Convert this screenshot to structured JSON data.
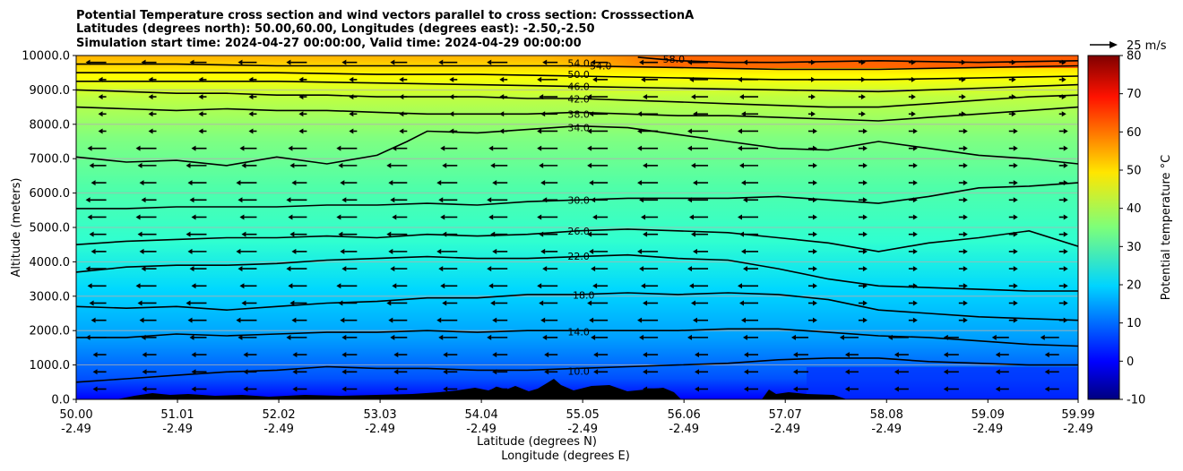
{
  "chart_data": {
    "type": "contour_cross_section",
    "title_lines": [
      "Potential Temperature cross section and wind vectors parallel to cross section: CrosssectionA",
      "Latitudes (degrees north): 50.00,60.00, Longitudes (degrees east): -2.50,-2.50",
      "Simulation start time: 2024-04-27 00:00:00, Valid time: 2024-04-29 00:00:00"
    ],
    "ylabel": "Altitude (meters)",
    "xlabel": "Latitude (degrees N)",
    "xlabel2": "Longitude (degrees E)",
    "xlim": [
      50.0,
      59.99
    ],
    "ylim": [
      0,
      10000
    ],
    "x_ticks": [
      {
        "lat": "50.00",
        "lon": "-2.49",
        "value": 50.0
      },
      {
        "lat": "51.01",
        "lon": "-2.49",
        "value": 51.01
      },
      {
        "lat": "52.02",
        "lon": "-2.49",
        "value": 52.02
      },
      {
        "lat": "53.03",
        "lon": "-2.49",
        "value": 53.03
      },
      {
        "lat": "54.04",
        "lon": "-2.49",
        "value": 54.04
      },
      {
        "lat": "55.05",
        "lon": "-2.49",
        "value": 55.05
      },
      {
        "lat": "56.06",
        "lon": "-2.49",
        "value": 56.06
      },
      {
        "lat": "57.07",
        "lon": "-2.49",
        "value": 57.07
      },
      {
        "lat": "58.08",
        "lon": "-2.49",
        "value": 58.08
      },
      {
        "lat": "59.09",
        "lon": "-2.49",
        "value": 59.09
      },
      {
        "lat": "59.99",
        "lon": "-2.49",
        "value": 59.99
      }
    ],
    "y_ticks": [
      {
        "label": "0.0",
        "value": 0
      },
      {
        "label": "1000.0",
        "value": 1000
      },
      {
        "label": "2000.0",
        "value": 2000
      },
      {
        "label": "3000.0",
        "value": 3000
      },
      {
        "label": "4000.0",
        "value": 4000
      },
      {
        "label": "5000.0",
        "value": 5000
      },
      {
        "label": "6000.0",
        "value": 6000
      },
      {
        "label": "7000.0",
        "value": 7000
      },
      {
        "label": "8000.0",
        "value": 8000
      },
      {
        "label": "9000.0",
        "value": 9000
      },
      {
        "label": "10000.0",
        "value": 10000
      }
    ],
    "grid": "horizontal",
    "colorbar": {
      "label": "Potential temperature $^\\circ$C",
      "min": -10,
      "max": 80,
      "ticks": [
        "-10",
        "0",
        "10",
        "20",
        "30",
        "40",
        "50",
        "60",
        "70",
        "80"
      ],
      "colormap": "jet"
    },
    "quiver_key": {
      "label": "25 m/s"
    },
    "contours": [
      {
        "label": "10.0",
        "points": [
          [
            50.0,
            500
          ],
          [
            50.5,
            600
          ],
          [
            51.0,
            700
          ],
          [
            51.5,
            800
          ],
          [
            52.0,
            850
          ],
          [
            52.5,
            950
          ],
          [
            53.0,
            900
          ],
          [
            53.5,
            900
          ],
          [
            54.0,
            850
          ],
          [
            54.5,
            850
          ],
          [
            55.0,
            900
          ],
          [
            55.5,
            950
          ],
          [
            56.0,
            1000
          ],
          [
            56.5,
            1050
          ],
          [
            57.0,
            1150
          ],
          [
            57.5,
            1200
          ],
          [
            58.0,
            1200
          ],
          [
            58.5,
            1100
          ],
          [
            59.0,
            1050
          ],
          [
            59.5,
            1000
          ],
          [
            59.99,
            1000
          ]
        ],
        "label_at": [
          54.9,
          820
        ]
      },
      {
        "label": "14.0",
        "points": [
          [
            50.0,
            1800
          ],
          [
            50.5,
            1800
          ],
          [
            51.0,
            1900
          ],
          [
            51.5,
            1850
          ],
          [
            52.0,
            1900
          ],
          [
            52.5,
            1950
          ],
          [
            53.0,
            1950
          ],
          [
            53.5,
            2000
          ],
          [
            54.0,
            1950
          ],
          [
            54.5,
            2000
          ],
          [
            55.0,
            2000
          ],
          [
            55.5,
            2000
          ],
          [
            56.0,
            2000
          ],
          [
            56.5,
            2050
          ],
          [
            57.0,
            2050
          ],
          [
            57.5,
            1950
          ],
          [
            58.0,
            1850
          ],
          [
            58.5,
            1800
          ],
          [
            59.0,
            1700
          ],
          [
            59.5,
            1600
          ],
          [
            59.99,
            1550
          ]
        ],
        "label_at": [
          54.9,
          1970
        ]
      },
      {
        "label": "18.0",
        "points": [
          [
            50.0,
            2700
          ],
          [
            50.5,
            2650
          ],
          [
            51.0,
            2700
          ],
          [
            51.5,
            2600
          ],
          [
            52.0,
            2700
          ],
          [
            52.5,
            2800
          ],
          [
            53.0,
            2850
          ],
          [
            53.5,
            2950
          ],
          [
            54.0,
            2950
          ],
          [
            54.5,
            3050
          ],
          [
            55.0,
            3050
          ],
          [
            55.5,
            3100
          ],
          [
            56.0,
            3050
          ],
          [
            56.5,
            3100
          ],
          [
            57.0,
            3050
          ],
          [
            57.5,
            2900
          ],
          [
            58.0,
            2600
          ],
          [
            58.5,
            2500
          ],
          [
            59.0,
            2400
          ],
          [
            59.5,
            2350
          ],
          [
            59.99,
            2300
          ]
        ],
        "label_at": [
          54.95,
          3040
        ]
      },
      {
        "label": "22.0",
        "points": [
          [
            50.0,
            3700
          ],
          [
            50.5,
            3850
          ],
          [
            51.0,
            3900
          ],
          [
            51.5,
            3900
          ],
          [
            52.0,
            3950
          ],
          [
            52.5,
            4050
          ],
          [
            53.0,
            4100
          ],
          [
            53.5,
            4150
          ],
          [
            54.0,
            4100
          ],
          [
            54.5,
            4100
          ],
          [
            55.0,
            4150
          ],
          [
            55.5,
            4200
          ],
          [
            56.0,
            4100
          ],
          [
            56.5,
            4050
          ],
          [
            57.0,
            3800
          ],
          [
            57.5,
            3500
          ],
          [
            58.0,
            3300
          ],
          [
            58.5,
            3250
          ],
          [
            59.0,
            3200
          ],
          [
            59.5,
            3150
          ],
          [
            59.99,
            3150
          ]
        ],
        "label_at": [
          54.9,
          4170
        ]
      },
      {
        "label": "26.0",
        "points": [
          [
            50.0,
            4500
          ],
          [
            50.5,
            4600
          ],
          [
            51.0,
            4650
          ],
          [
            51.5,
            4700
          ],
          [
            52.0,
            4700
          ],
          [
            52.5,
            4750
          ],
          [
            53.0,
            4700
          ],
          [
            53.5,
            4800
          ],
          [
            54.0,
            4750
          ],
          [
            54.5,
            4800
          ],
          [
            55.0,
            4900
          ],
          [
            55.5,
            4950
          ],
          [
            56.0,
            4900
          ],
          [
            56.5,
            4850
          ],
          [
            57.0,
            4700
          ],
          [
            57.5,
            4550
          ],
          [
            58.0,
            4300
          ],
          [
            58.5,
            4550
          ],
          [
            59.0,
            4700
          ],
          [
            59.5,
            4900
          ],
          [
            59.99,
            4450
          ]
        ],
        "label_at": [
          54.9,
          4900
        ]
      },
      {
        "label": "30.0",
        "points": [
          [
            50.0,
            5550
          ],
          [
            50.5,
            5550
          ],
          [
            51.0,
            5600
          ],
          [
            51.5,
            5600
          ],
          [
            52.0,
            5600
          ],
          [
            52.5,
            5650
          ],
          [
            53.0,
            5650
          ],
          [
            53.5,
            5700
          ],
          [
            54.0,
            5650
          ],
          [
            54.5,
            5750
          ],
          [
            55.0,
            5800
          ],
          [
            55.5,
            5850
          ],
          [
            56.0,
            5850
          ],
          [
            56.5,
            5850
          ],
          [
            57.0,
            5900
          ],
          [
            57.5,
            5800
          ],
          [
            58.0,
            5700
          ],
          [
            58.5,
            5900
          ],
          [
            59.0,
            6150
          ],
          [
            59.5,
            6200
          ],
          [
            59.99,
            6300
          ]
        ],
        "label_at": [
          54.9,
          5800
        ]
      },
      {
        "label": "34.0",
        "points": [
          [
            50.0,
            7050
          ],
          [
            50.5,
            6900
          ],
          [
            51.0,
            6950
          ],
          [
            51.5,
            6800
          ],
          [
            52.0,
            7050
          ],
          [
            52.5,
            6850
          ],
          [
            53.0,
            7100
          ],
          [
            53.3,
            7500
          ],
          [
            53.5,
            7800
          ],
          [
            54.0,
            7750
          ],
          [
            54.5,
            7850
          ],
          [
            55.0,
            7950
          ],
          [
            55.5,
            7900
          ],
          [
            56.0,
            7700
          ],
          [
            56.5,
            7500
          ],
          [
            57.0,
            7300
          ],
          [
            57.5,
            7250
          ],
          [
            58.0,
            7500
          ],
          [
            58.5,
            7300
          ],
          [
            59.0,
            7100
          ],
          [
            59.5,
            7000
          ],
          [
            59.99,
            6850
          ]
        ],
        "label_at": [
          54.9,
          7900
        ]
      },
      {
        "label": "38.0",
        "points": [
          [
            50.0,
            8500
          ],
          [
            50.5,
            8450
          ],
          [
            51.0,
            8400
          ],
          [
            51.5,
            8450
          ],
          [
            52.0,
            8400
          ],
          [
            52.5,
            8400
          ],
          [
            53.0,
            8350
          ],
          [
            53.5,
            8300
          ],
          [
            54.0,
            8300
          ],
          [
            54.5,
            8300
          ],
          [
            55.0,
            8350
          ],
          [
            55.5,
            8300
          ],
          [
            56.0,
            8250
          ],
          [
            56.5,
            8250
          ],
          [
            57.0,
            8200
          ],
          [
            57.5,
            8150
          ],
          [
            58.0,
            8100
          ],
          [
            58.5,
            8200
          ],
          [
            59.0,
            8300
          ],
          [
            59.5,
            8400
          ],
          [
            59.99,
            8500
          ]
        ],
        "label_at": [
          54.9,
          8300
        ]
      },
      {
        "label": "42.0",
        "points": [
          [
            50.0,
            9000
          ],
          [
            50.5,
            8950
          ],
          [
            51.0,
            8900
          ],
          [
            51.5,
            8900
          ],
          [
            52.0,
            8850
          ],
          [
            52.5,
            8850
          ],
          [
            53.0,
            8800
          ],
          [
            53.5,
            8800
          ],
          [
            54.0,
            8800
          ],
          [
            54.5,
            8750
          ],
          [
            55.0,
            8750
          ],
          [
            55.5,
            8700
          ],
          [
            56.0,
            8650
          ],
          [
            56.5,
            8600
          ],
          [
            57.0,
            8550
          ],
          [
            57.5,
            8500
          ],
          [
            58.0,
            8500
          ],
          [
            58.5,
            8600
          ],
          [
            59.0,
            8700
          ],
          [
            59.5,
            8800
          ],
          [
            59.99,
            8850
          ]
        ],
        "label_at": [
          54.9,
          8740
        ]
      },
      {
        "label": "46.0",
        "points": [
          [
            50.0,
            9250
          ],
          [
            51.0,
            9250
          ],
          [
            52.0,
            9250
          ],
          [
            53.0,
            9200
          ],
          [
            54.0,
            9150
          ],
          [
            55.0,
            9100
          ],
          [
            56.0,
            9050
          ],
          [
            57.0,
            9000
          ],
          [
            58.0,
            8950
          ],
          [
            59.0,
            9050
          ],
          [
            59.99,
            9150
          ]
        ],
        "label_at": [
          54.9,
          9100
        ]
      },
      {
        "label": "50.0",
        "points": [
          [
            50.0,
            9500
          ],
          [
            51.0,
            9500
          ],
          [
            52.0,
            9500
          ],
          [
            53.0,
            9450
          ],
          [
            54.0,
            9450
          ],
          [
            55.0,
            9400
          ],
          [
            56.0,
            9350
          ],
          [
            57.0,
            9300
          ],
          [
            58.0,
            9300
          ],
          [
            59.0,
            9350
          ],
          [
            59.99,
            9400
          ]
        ],
        "label_at": [
          54.9,
          9450
        ]
      },
      {
        "label": "54.0",
        "points": [
          [
            50.0,
            9750
          ],
          [
            51.0,
            9750
          ],
          [
            52.0,
            9700
          ],
          [
            53.0,
            9700
          ],
          [
            54.0,
            9700
          ],
          [
            55.0,
            9700
          ],
          [
            56.0,
            9650
          ],
          [
            57.0,
            9600
          ],
          [
            58.0,
            9600
          ],
          [
            59.0,
            9650
          ],
          [
            59.99,
            9700
          ]
        ],
        "label_at": [
          54.9,
          9780
        ]
      },
      {
        "label": "54.0",
        "points": [],
        "label_at": [
          55.12,
          9700
        ]
      },
      {
        "label": "58.0",
        "points": [
          [
            55.6,
            9950
          ],
          [
            56.0,
            9850
          ],
          [
            56.5,
            9800
          ],
          [
            57.0,
            9800
          ],
          [
            58.0,
            9850
          ],
          [
            59.0,
            9800
          ],
          [
            59.99,
            9850
          ]
        ],
        "label_at": [
          55.85,
          9900
        ]
      }
    ]
  }
}
